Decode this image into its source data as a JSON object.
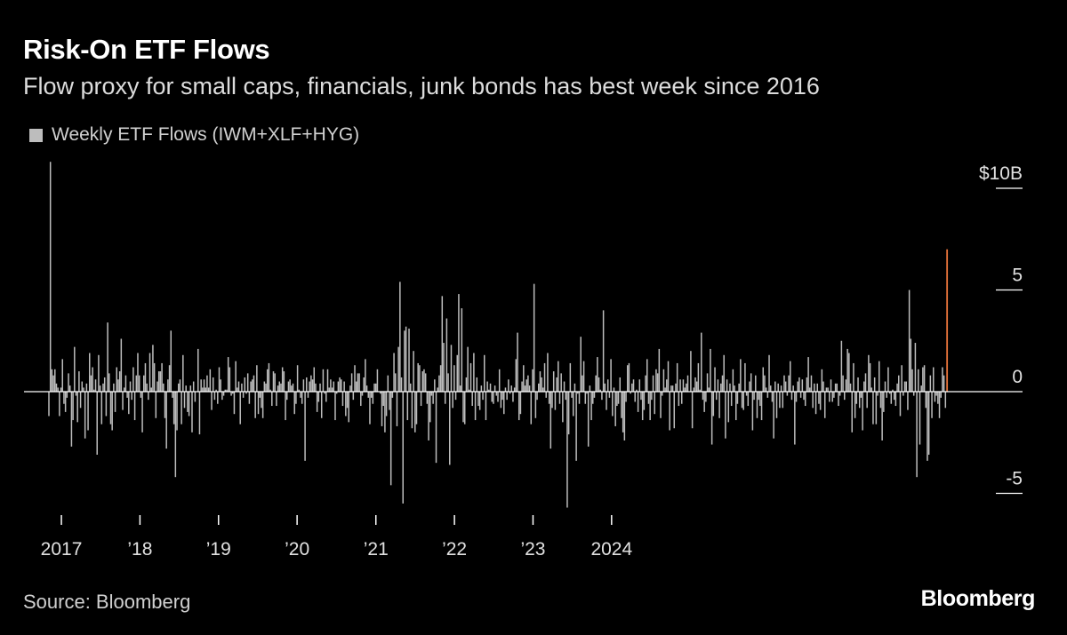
{
  "title": "Risk-On ETF Flows",
  "subtitle": "Flow proxy for small caps, financials, junk bonds has best week since 2016",
  "source": "Source: Bloomberg",
  "brand": "Bloomberg",
  "colors": {
    "background": "#000000",
    "bar": "#bdbdbd",
    "highlight": "#e8733a",
    "zero_line": "#ffffff"
  },
  "chart_data": {
    "type": "bar",
    "series": [
      {
        "name": "Weekly ETF Flows (IWM+XLF+HYG)",
        "start_date": "2016-11-04",
        "interval_days": 7,
        "values": [
          -1.2,
          11.3,
          1.1,
          0.8,
          1.1,
          0.4,
          0.2,
          -1.2,
          0.2,
          1.6,
          -0.6,
          -1.0,
          -0.3,
          0.9,
          0.3,
          -2.7,
          -1.4,
          2.2,
          -0.2,
          -1.5,
          1.0,
          -0.8,
          0.5,
          0.2,
          -2.3,
          0.4,
          -1.9,
          1.9,
          0.8,
          1.2,
          0.1,
          0.6,
          -3.1,
          1.8,
          0.3,
          -1.6,
          0.4,
          0.7,
          -1.2,
          3.4,
          0.9,
          -1.6,
          -1.9,
          0.4,
          -1.0,
          1.2,
          0.6,
          1.0,
          2.6,
          -0.9,
          0.2,
          0.8,
          -0.3,
          -1.1,
          0.5,
          -0.4,
          1.2,
          -1.4,
          0.8,
          1.9,
          0.8,
          -0.3,
          -2.0,
          0.8,
          1.4,
          0.4,
          -0.4,
          1.9,
          0.2,
          2.3,
          1.4,
          -1.3,
          0.5,
          1.0,
          1.0,
          1.4,
          0.4,
          -1.3,
          -2.8,
          0.6,
          1.3,
          3.0,
          -0.3,
          -1.6,
          -4.2,
          -1.9,
          0.4,
          0.6,
          -1.6,
          1.8,
          -0.8,
          0.3,
          -1.0,
          -1.2,
          0.3,
          -2.0,
          0.5,
          -0.5,
          0.0,
          2.1,
          -2.1,
          0.6,
          0.2,
          0.6,
          0.2,
          0.8,
          0.2,
          1.1,
          -0.9,
          0.7,
          -0.4,
          0.1,
          -0.6,
          1.2,
          0.6,
          -0.4,
          -0.2,
          0.1,
          0.1,
          1.7,
          1.2,
          -0.2,
          -0.1,
          -1.1,
          1.5,
          0.2,
          0.5,
          -1.6,
          0.4,
          -0.3,
          0.7,
          -0.1,
          0.9,
          -0.6,
          0.5,
          0.6,
          0.8,
          -1.3,
          1.3,
          -1.1,
          -0.3,
          -0.8,
          -1.3,
          0.5,
          0.4,
          1.1,
          1.4,
          0.1,
          -0.7,
          1.0,
          0.9,
          -0.7,
          0.3,
          0.5,
          0.4,
          1.2,
          1.0,
          -1.4,
          -0.4,
          0.5,
          0.6,
          0.3,
          0.4,
          -1.1,
          -0.6,
          1.3,
          0.1,
          -0.3,
          -0.6,
          0.6,
          -3.4,
          0.7,
          -0.3,
          0.5,
          0.8,
          0.6,
          1.2,
          0.4,
          -1.0,
          -0.5,
          0.4,
          -1.3,
          1.1,
          -0.1,
          -0.5,
          1.1,
          0.2,
          0.6,
          0.2,
          0.5,
          -1.4,
          -0.1,
          0.5,
          0.7,
          0.6,
          -0.7,
          0.5,
          -1.2,
          -0.8,
          -1.5,
          0.3,
          0.9,
          -0.4,
          1.3,
          0.5,
          0.9,
          0.9,
          -0.7,
          -0.2,
          0.7,
          1.6,
          0.3,
          -0.3,
          -1.6,
          -0.3,
          -0.6,
          0.4,
          0.4,
          1.1,
          0.0,
          -0.1,
          -1.7,
          -0.7,
          -2.0,
          -1.2,
          0.8,
          -0.9,
          -4.6,
          -0.3,
          1.9,
          0.9,
          -1.7,
          2.2,
          5.4,
          0.7,
          -5.5,
          3.0,
          3.2,
          -1.4,
          3.1,
          0.4,
          -1.8,
          2.0,
          -2.0,
          -1.6,
          1.4,
          1.3,
          -0.7,
          1.0,
          1.1,
          0.9,
          -0.6,
          -2.4,
          -1.5,
          -0.2,
          -0.6,
          0.6,
          -3.5,
          0.2,
          0.8,
          1.3,
          4.7,
          2.4,
          -0.6,
          3.6,
          0.9,
          -3.6,
          2.3,
          -0.8,
          1.3,
          -0.4,
          1.8,
          4.8,
          0.3,
          4.1,
          -1.5,
          -1.6,
          0.7,
          2.2,
          0.1,
          1.4,
          -0.7,
          1.9,
          -1.4,
          0.7,
          -0.7,
          -0.9,
          0.3,
          -0.4,
          1.8,
          -1.4,
          0.5,
          0.1,
          0.4,
          -0.5,
          -0.6,
          0.3,
          -0.2,
          -0.5,
          1.1,
          -0.8,
          -0.4,
          -1.1,
          0.2,
          -0.4,
          0.6,
          -0.1,
          0.3,
          -0.5,
          0.2,
          1.6,
          2.9,
          -1.4,
          -1.1,
          0.5,
          1.3,
          0.3,
          0.6,
          0.8,
          0.3,
          -1.6,
          1.1,
          5.3,
          -1.3,
          -0.4,
          0.4,
          1.0,
          0.7,
          0.2,
          1.4,
          -0.3,
          1.9,
          -0.6,
          -2.8,
          -0.8,
          1.0,
          -0.9,
          0.7,
          1.5,
          -0.6,
          0.9,
          -1.5,
          0.5,
          -0.4,
          -5.7,
          -2.1,
          1.4,
          -0.3,
          -1.2,
          0.4,
          -3.4,
          -0.1,
          -0.6,
          2.7,
          0.8,
          1.5,
          -0.6,
          -0.1,
          -2.7,
          0.3,
          -1.4,
          -0.6,
          -0.3,
          0.8,
          1.7,
          0.7,
          0.1,
          -0.4,
          4.0,
          0.4,
          -0.9,
          0.6,
          -0.3,
          1.6,
          -1.2,
          0.2,
          -1.7,
          -0.7,
          -0.6,
          0.7,
          -1.3,
          -2.0,
          -2.4,
          -0.5,
          1.3,
          1.4,
          -0.1,
          0.4,
          0.6,
          -0.5,
          0.1,
          -1.0,
          0.6,
          -0.4,
          -1.4,
          -0.9,
          0.8,
          1.6,
          -0.6,
          -1.4,
          -0.4,
          0.8,
          -1.1,
          1.1,
          0.9,
          2.1,
          -1.3,
          -0.2,
          1.1,
          0.2,
          0.6,
          1.5,
          -1.9,
          0.3,
          0.3,
          -1.8,
          0.4,
          1.4,
          -0.7,
          0.6,
          -0.6,
          0.6,
          0.2,
          0.4,
          0.8,
          0.0,
          2.0,
          -1.8,
          0.2,
          0.7,
          0.5,
          1.4,
          0.1,
          2.9,
          -0.4,
          -1.0,
          -0.5,
          0.9,
          0.2,
          2.1,
          -2.6,
          -1.2,
          1.2,
          -0.4,
          0.6,
          -1.3,
          0.4,
          0.8,
          1.8,
          -2.3,
          0.6,
          -1.5,
          0.4,
          -0.7,
          1.1,
          0.3,
          -1.4,
          -0.6,
          0.4,
          1.6,
          -0.8,
          -0.9,
          1.4,
          -0.2,
          -0.7,
          0.5,
          0.9,
          -1.9,
          -0.4,
          0.8,
          -1.3,
          -0.4,
          -0.7,
          -1.4,
          1.2,
          0.8,
          0.2,
          -0.3,
          1.8,
          0.3,
          -0.5,
          -2.3,
          0.5,
          -1.3,
          0.4,
          -0.8,
          0.3,
          -0.8,
          0.8,
          0.5,
          -0.2,
          0.8,
          1.5,
          -0.4,
          0.3,
          -2.6,
          -0.5,
          0.5,
          0.7,
          -0.3,
          0.6,
          -0.4,
          -0.7,
          0.7,
          1.7,
          0.2,
          0.8,
          -0.8,
          0.4,
          -1.1,
          0.4,
          -0.6,
          -0.9,
          1.1,
          0.5,
          -1.3,
          0.2,
          0.2,
          -0.5,
          0.6,
          -0.5,
          -0.3,
          0.4,
          0.4,
          -0.7,
          -0.2,
          2.5,
          0.8,
          -0.4,
          0.6,
          2.1,
          1.9,
          0.4,
          -2.0,
          1.4,
          -1.3,
          -0.6,
          0.7,
          -0.8,
          -0.3,
          -1.9,
          0.5,
          0.9,
          -0.8,
          1.8,
          1.4,
          0.2,
          -1.6,
          0.7,
          -1.6,
          -0.2,
          1.5,
          -0.8,
          -2.4,
          -1.0,
          0.5,
          -0.3,
          1.2,
          -0.1,
          -0.6,
          0.1,
          -0.4,
          -0.7,
          0.4,
          0.8,
          -1.2,
          1.3,
          -0.2,
          0.5,
          0.5,
          -0.9,
          5.0,
          2.6,
          1.1,
          -0.2,
          2.4,
          -4.2,
          1.1,
          -2.6,
          0.3,
          1.2,
          1.3,
          -0.8,
          -3.4,
          -3.1,
          0.8,
          -1.3,
          1.2,
          -0.5,
          -0.2,
          -0.6,
          -1.3,
          -0.3,
          1.2,
          0.8,
          -0.8,
          7.0
        ]
      }
    ],
    "highlight_last": true,
    "ylim": [
      -5.6,
      11.3
    ],
    "ytick_values": [
      10,
      5,
      0,
      -5
    ],
    "ytick_labels": [
      "$10B",
      "5",
      "0",
      "-5"
    ],
    "xticks": [
      {
        "label": "2017",
        "date": "2017-01-01"
      },
      {
        "label": "’18",
        "date": "2018-01-01"
      },
      {
        "label": "’19",
        "date": "2019-01-01"
      },
      {
        "label": "’20",
        "date": "2020-01-01"
      },
      {
        "label": "’21",
        "date": "2021-01-01"
      },
      {
        "label": "’22",
        "date": "2022-01-01"
      },
      {
        "label": "’23",
        "date": "2023-01-01"
      },
      {
        "label": "2024",
        "date": "2024-01-01"
      }
    ]
  }
}
